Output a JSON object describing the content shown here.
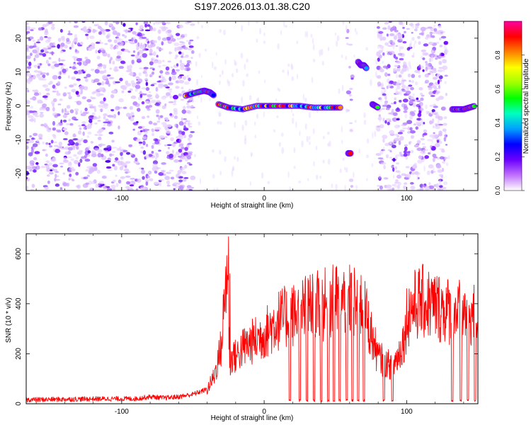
{
  "title": "S197.2026.013.01.38.C20",
  "chart_data": [
    {
      "type": "heatmap",
      "xlabel": "Height of straight line (km)",
      "ylabel": "Frequency (Hz)",
      "xlim": [
        -167,
        150
      ],
      "ylim": [
        -25,
        25
      ],
      "xticks": [
        -100,
        0,
        100
      ],
      "yticks": [
        -20,
        -10,
        0,
        10,
        20
      ],
      "colorbar": {
        "label": "Normalized spectral amplitude",
        "range": [
          0,
          1
        ],
        "ticks": [
          "0.0",
          "0.2",
          "0.4",
          "0.6",
          "0.8"
        ],
        "colors": [
          "#ffffff",
          "#c070ff",
          "#6a00ff",
          "#0000ff",
          "#00a0ff",
          "#00ffc0",
          "#00ff00",
          "#a0ff00",
          "#ffff00",
          "#ff8000",
          "#ff0000",
          "#ff00a0"
        ]
      },
      "noise_regions": [
        {
          "x": [
            -167,
            -50
          ],
          "density": "high"
        },
        {
          "x": [
            58,
            62
          ],
          "density": "low"
        },
        {
          "x": [
            80,
            128
          ],
          "density": "high"
        }
      ],
      "tracks": [
        {
          "x": [
            -55,
            -47,
            -42,
            -38,
            -35
          ],
          "y": [
            3,
            4,
            4.5,
            4,
            3
          ]
        },
        {
          "x": [
            -32,
            -25,
            -15,
            -5,
            5,
            15,
            25,
            35,
            45,
            55
          ],
          "y": [
            0.5,
            -0.5,
            -1,
            0,
            0,
            0,
            0,
            -0.5,
            -0.5,
            -0.5
          ]
        },
        {
          "x": [
            59,
            61
          ],
          "y": [
            -14,
            -14
          ]
        },
        {
          "x": [
            66,
            68,
            70,
            72
          ],
          "y": [
            13,
            12,
            12,
            11
          ]
        },
        {
          "x": [
            76,
            78,
            80
          ],
          "y": [
            0.5,
            0,
            -0.5
          ]
        },
        {
          "x": [
            132,
            136,
            140,
            144,
            148
          ],
          "y": [
            -1,
            -1,
            -1,
            -0.5,
            0
          ]
        }
      ]
    },
    {
      "type": "line",
      "xlabel": "Height of straight line (km)",
      "ylabel": "SNR (10 * v/v)",
      "xlim": [
        -167,
        150
      ],
      "ylim": [
        0,
        680
      ],
      "xticks": [
        -100,
        0,
        100
      ],
      "yticks": [
        0,
        200,
        400,
        600
      ],
      "series": [
        {
          "color": "#ff0000",
          "x": [
            -167,
            -140,
            -110,
            -90,
            -80,
            -70,
            -60,
            -50,
            -40,
            -35,
            -30,
            -26,
            -24,
            -22,
            -20,
            -15,
            -10,
            -5,
            0,
            10,
            20,
            30,
            40,
            50,
            60,
            70,
            75,
            80,
            85,
            90,
            95,
            99,
            100,
            105,
            110,
            120,
            130,
            140,
            150
          ],
          "y": [
            18,
            20,
            22,
            22,
            30,
            25,
            30,
            40,
            60,
            120,
            250,
            600,
            150,
            220,
            200,
            240,
            260,
            280,
            300,
            360,
            380,
            410,
            420,
            440,
            440,
            420,
            300,
            200,
            180,
            160,
            220,
            300,
            380,
            420,
            440,
            420,
            400,
            390,
            380
          ]
        }
      ],
      "spikes": [
        {
          "x": -25,
          "y": 668
        },
        {
          "x": -24,
          "y": 520
        }
      ],
      "dropouts_x": [
        18,
        25,
        30,
        35,
        40,
        45,
        49,
        53,
        58,
        62,
        66,
        70,
        84,
        90,
        132,
        138,
        143,
        148
      ]
    }
  ]
}
